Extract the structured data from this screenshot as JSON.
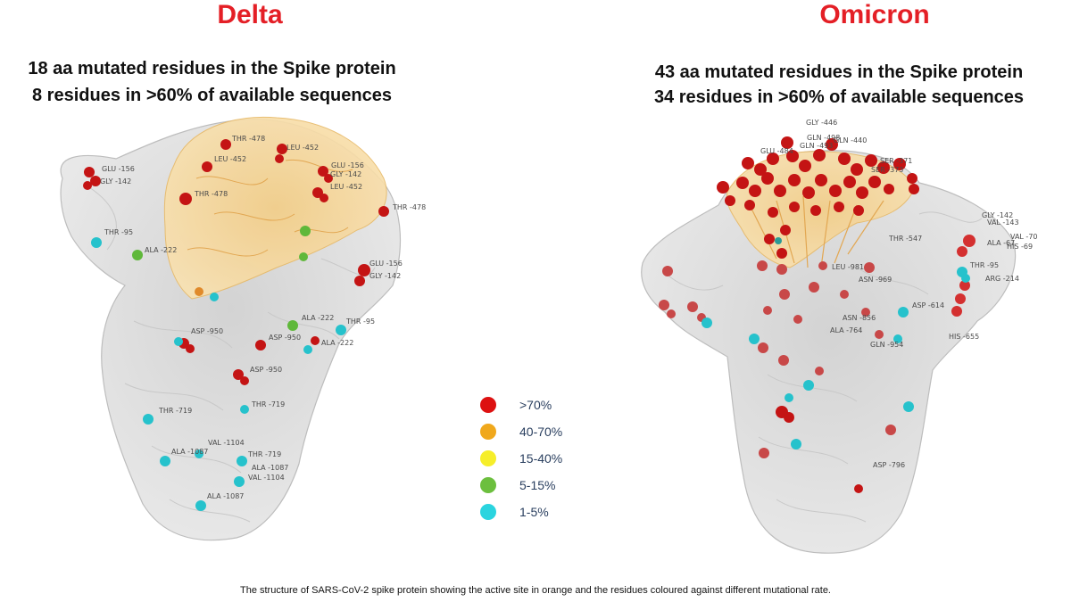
{
  "delta": {
    "title": "Delta",
    "subtitle_line1": "18 aa mutated residues in the Spike protein",
    "subtitle_line2": "8 residues in >60% of available sequences",
    "residue_labels": [
      "GLU -156",
      "GLY -142",
      "THR -478",
      "LEU -452",
      "LEU -452",
      "GLU -156",
      "GLY -142",
      "LEU -452",
      "THR -478",
      "THR -478",
      "THR -95",
      "ALA -222",
      "GLU -156",
      "GLY -142",
      "ALA -222",
      "THR -95",
      "ASP -950",
      "ASP -950",
      "ASP -950",
      "ALA -222",
      "THR -719",
      "THR -719",
      "VAL -1104",
      "ALA -1087",
      "THR -719",
      "ALA -1087",
      "VAL -1104",
      "ALA -1087"
    ]
  },
  "omicron": {
    "title": "Omicron",
    "subtitle_line1": "43 aa mutated residues in the Spike protein",
    "subtitle_line2": "34 residues in >60% of available sequences",
    "residue_labels": [
      "GLY -446",
      "GLN -498",
      "GLN -440",
      "GLU -484",
      "GLN -493",
      "SER -371",
      "SER -373",
      "GLY -142",
      "VAL -143",
      "VAL -70",
      "ALA -67",
      "HIS -69",
      "THR -547",
      "THR -95",
      "ARG -214",
      "LEU -981",
      "ASN -969",
      "ASP -614",
      "ASN -856",
      "ALA -764",
      "GLN -954",
      "HIS -655",
      "ASP -796"
    ]
  },
  "legend": [
    {
      "label": ">70%",
      "color": "#dd1111"
    },
    {
      "label": "40-70%",
      "color": "#f0a81c"
    },
    {
      "label": "15-40%",
      "color": "#f6ee2a"
    },
    {
      "label": "5-15%",
      "color": "#6cbf3e"
    },
    {
      "label": "1-5%",
      "color": "#2ad4df"
    }
  ],
  "caption": "The structure of SARS-CoV-2 spike protein showing the active site in orange and the residues coloured against different mutational rate."
}
